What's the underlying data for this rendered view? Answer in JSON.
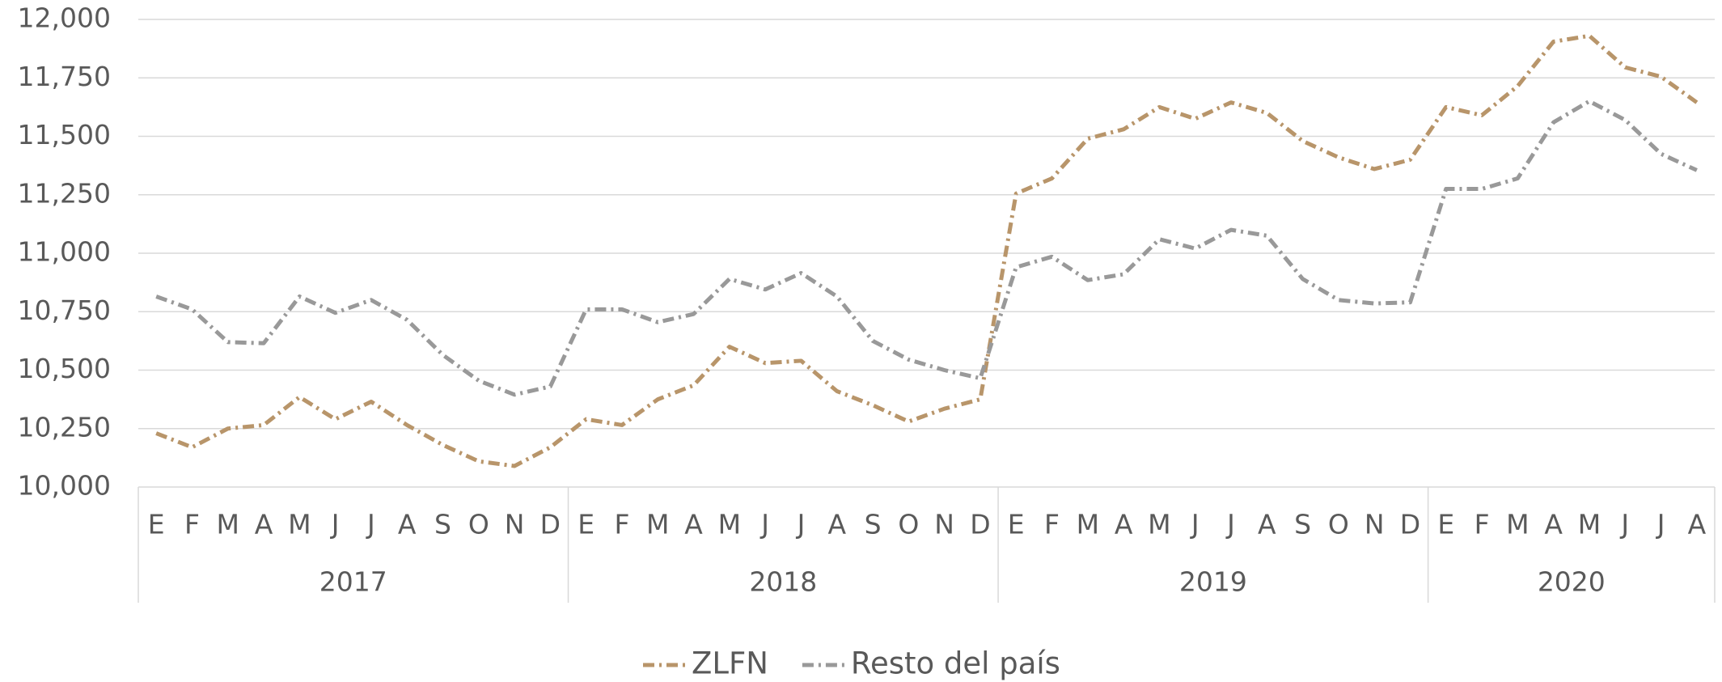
{
  "chart_data": {
    "type": "line",
    "category_groups": [
      {
        "label": "2017",
        "categories": [
          "E",
          "F",
          "M",
          "A",
          "M",
          "J",
          "J",
          "A",
          "S",
          "O",
          "N",
          "D"
        ]
      },
      {
        "label": "2018",
        "categories": [
          "E",
          "F",
          "M",
          "A",
          "M",
          "J",
          "J",
          "A",
          "S",
          "O",
          "N",
          "D"
        ]
      },
      {
        "label": "2019",
        "categories": [
          "E",
          "F",
          "M",
          "A",
          "M",
          "J",
          "J",
          "A",
          "S",
          "O",
          "N",
          "D"
        ]
      },
      {
        "label": "2020",
        "categories": [
          "E",
          "F",
          "M",
          "A",
          "M",
          "J",
          "J",
          "A"
        ]
      }
    ],
    "series": [
      {
        "name": "ZLFN",
        "color": "#b8956a",
        "values": [
          10230,
          10170,
          10250,
          10265,
          10385,
          10290,
          10365,
          10265,
          10180,
          10110,
          10090,
          10170,
          10290,
          10265,
          10375,
          10435,
          10600,
          10530,
          10540,
          10410,
          10350,
          10280,
          10335,
          10375,
          11255,
          11320,
          11490,
          11530,
          11625,
          11575,
          11645,
          11600,
          11480,
          11410,
          11360,
          11400,
          11625,
          11590,
          11715,
          11905,
          11930,
          11795,
          11755,
          11645
        ]
      },
      {
        "name": "Resto del país",
        "color": "#999999",
        "values": [
          10815,
          10760,
          10620,
          10615,
          10815,
          10745,
          10800,
          10715,
          10565,
          10455,
          10395,
          10430,
          10760,
          10760,
          10705,
          10740,
          10890,
          10845,
          10915,
          10815,
          10625,
          10545,
          10500,
          10465,
          10940,
          10985,
          10885,
          10910,
          11060,
          11020,
          11100,
          11075,
          10890,
          10800,
          10785,
          10790,
          11275,
          11275,
          11320,
          11560,
          11650,
          11570,
          11425,
          11355
        ]
      }
    ],
    "ylim": [
      10000,
      12000
    ],
    "yticks": [
      {
        "value": 10000,
        "label": "10,000"
      },
      {
        "value": 10250,
        "label": "10,250"
      },
      {
        "value": 10500,
        "label": "10,500"
      },
      {
        "value": 10750,
        "label": "10,750"
      },
      {
        "value": 11000,
        "label": "11,000"
      },
      {
        "value": 11250,
        "label": "11,250"
      },
      {
        "value": 11500,
        "label": "11,500"
      },
      {
        "value": 11750,
        "label": "11,750"
      },
      {
        "value": 12000,
        "label": "12,000"
      }
    ],
    "grid": true,
    "legend": "bottom"
  }
}
